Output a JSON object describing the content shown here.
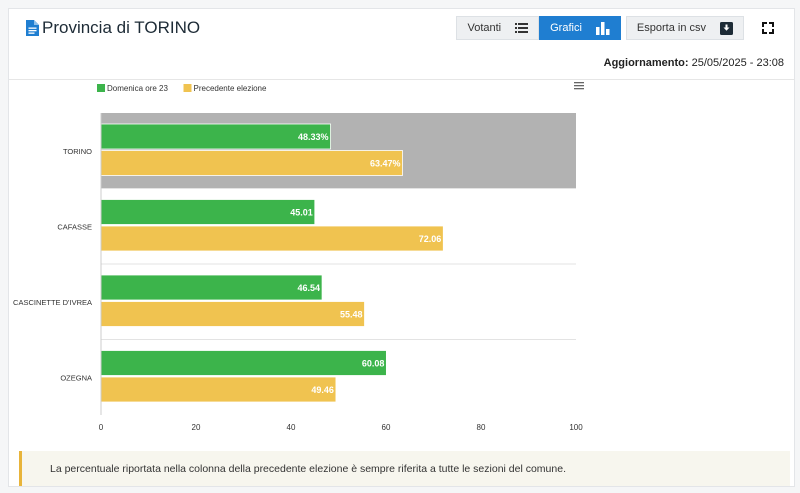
{
  "header": {
    "title": "Provincia di TORINO",
    "buttons": {
      "votanti": "Votanti",
      "grafici": "Grafici",
      "export": "Esporta in csv"
    },
    "update_label": "Aggiornamento:",
    "update_value": "25/05/2025 - 23:08"
  },
  "note": "La percentuale riportata nella colonna della precedente elezione è sempre riferita a tutte le sezioni del comune.",
  "colors": {
    "current": "#3cb44b",
    "previous": "#f0c350",
    "highlight": "#b2b2b2",
    "accent": "#1f7ed1"
  },
  "chart_data": {
    "type": "bar",
    "orientation": "horizontal",
    "categories": [
      "TORINO",
      "CAFASSE",
      "CASCINETTE D'IVREA",
      "OZEGNA"
    ],
    "series": [
      {
        "name": "Domenica ore 23",
        "values": [
          48.33,
          45.01,
          46.54,
          60.08
        ],
        "labels": [
          "48.33%",
          "45.01",
          "46.54",
          "60.08"
        ]
      },
      {
        "name": "Precedente elezione",
        "values": [
          63.47,
          72.06,
          55.48,
          49.46
        ],
        "labels": [
          "63.47%",
          "72.06",
          "55.48",
          "49.46"
        ]
      }
    ],
    "xlim": [
      0,
      100
    ],
    "xticks": [
      "0",
      "20",
      "40",
      "60",
      "80",
      "100"
    ],
    "highlighted_category": "TORINO",
    "legend_position": "top-left"
  }
}
